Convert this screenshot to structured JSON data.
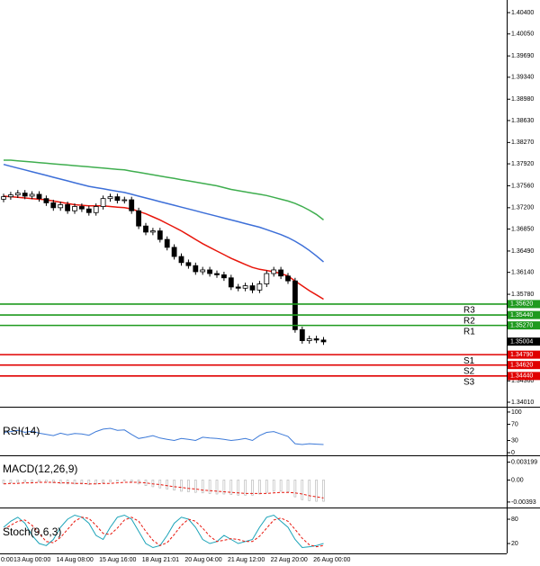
{
  "chart_data": [
    {
      "type": "candlestick",
      "ylim": [
        1.33936,
        1.40607
      ],
      "yticks": [
        {
          "value": 1.404,
          "label": "1.40400"
        },
        {
          "value": 1.4005,
          "label": "1.40050"
        },
        {
          "value": 1.3969,
          "label": "1.39690"
        },
        {
          "value": 1.3934,
          "label": "1.39340"
        },
        {
          "value": 1.3898,
          "label": "1.38980"
        },
        {
          "value": 1.3863,
          "label": "1.38630"
        },
        {
          "value": 1.3827,
          "label": "1.38270"
        },
        {
          "value": 1.3792,
          "label": "1.37920"
        },
        {
          "value": 1.3756,
          "label": "1.37560"
        },
        {
          "value": 1.372,
          "label": "1.37200"
        },
        {
          "value": 1.3685,
          "label": "1.36850"
        },
        {
          "value": 1.3649,
          "label": "1.36490"
        },
        {
          "value": 1.3614,
          "label": "1.36140"
        },
        {
          "value": 1.3578,
          "label": "1.35780"
        },
        {
          "value": 1.3436,
          "label": "1.34360"
        },
        {
          "value": 1.3401,
          "label": "1.34010"
        }
      ],
      "open": [
        1.3734,
        1.3738,
        1.3741,
        1.3744,
        1.3739,
        1.3742,
        1.3735,
        1.3728,
        1.372,
        1.3725,
        1.3715,
        1.3722,
        1.3718,
        1.3712,
        1.3722,
        1.3735,
        1.3738,
        1.3732,
        1.3733,
        1.3715,
        1.369,
        1.368,
        1.3682,
        1.3668,
        1.3655,
        1.364,
        1.363,
        1.3625,
        1.3615,
        1.3618,
        1.3612,
        1.361,
        1.3605,
        1.359,
        1.3588,
        1.3592,
        1.3585,
        1.3595,
        1.3612,
        1.3618,
        1.3608,
        1.36,
        1.352,
        1.3502,
        1.3505,
        1.3503
      ],
      "high": [
        1.3743,
        1.3746,
        1.3749,
        1.3749,
        1.3747,
        1.3747,
        1.374,
        1.3733,
        1.373,
        1.373,
        1.3727,
        1.3727,
        1.3723,
        1.3727,
        1.374,
        1.3743,
        1.3743,
        1.3738,
        1.3738,
        1.372,
        1.3695,
        1.3687,
        1.3687,
        1.3673,
        1.366,
        1.3645,
        1.3635,
        1.363,
        1.3623,
        1.3623,
        1.3617,
        1.3615,
        1.361,
        1.3595,
        1.3597,
        1.3597,
        1.36,
        1.3617,
        1.3623,
        1.3623,
        1.3613,
        1.3605,
        1.3525,
        1.351,
        1.351,
        1.3508
      ],
      "low": [
        1.3729,
        1.3733,
        1.3736,
        1.3734,
        1.3734,
        1.373,
        1.3723,
        1.3715,
        1.3715,
        1.371,
        1.371,
        1.3713,
        1.3707,
        1.3707,
        1.3717,
        1.373,
        1.3727,
        1.3727,
        1.371,
        1.3685,
        1.3675,
        1.3675,
        1.3663,
        1.365,
        1.3635,
        1.3625,
        1.362,
        1.361,
        1.361,
        1.3607,
        1.3605,
        1.36,
        1.3585,
        1.3583,
        1.3583,
        1.358,
        1.358,
        1.359,
        1.3607,
        1.3603,
        1.3595,
        1.3515,
        1.3497,
        1.3497,
        1.3498,
        1.3495
      ],
      "close": [
        1.3738,
        1.3741,
        1.3744,
        1.3739,
        1.3742,
        1.3735,
        1.3728,
        1.372,
        1.3725,
        1.3715,
        1.3722,
        1.3718,
        1.3712,
        1.3722,
        1.3735,
        1.3738,
        1.3732,
        1.3733,
        1.3715,
        1.369,
        1.368,
        1.3682,
        1.3668,
        1.3655,
        1.364,
        1.363,
        1.3625,
        1.3615,
        1.3618,
        1.3612,
        1.361,
        1.3605,
        1.359,
        1.3588,
        1.3592,
        1.3585,
        1.3595,
        1.3612,
        1.3618,
        1.3608,
        1.36,
        1.352,
        1.3502,
        1.3505,
        1.3503,
        1.35
      ],
      "moving_averages": [
        {
          "color": "#e8160c",
          "values": [
            1.3739,
            1.3738,
            1.3737,
            1.3736,
            1.3735,
            1.3734,
            1.3733,
            1.3731,
            1.3729,
            1.3727,
            1.3725,
            1.3724,
            1.3723,
            1.3723,
            1.3723,
            1.3722,
            1.3721,
            1.372,
            1.3718,
            1.3714,
            1.371,
            1.3705,
            1.37,
            1.3694,
            1.3688,
            1.3682,
            1.3675,
            1.3668,
            1.3661,
            1.3655,
            1.3649,
            1.3643,
            1.3637,
            1.3632,
            1.3627,
            1.3622,
            1.3619,
            1.3617,
            1.3615,
            1.3612,
            1.3608,
            1.36,
            1.3592,
            1.3584,
            1.3577,
            1.357
          ]
        },
        {
          "color": "#3d6fd8",
          "values": [
            1.3791,
            1.3788,
            1.3785,
            1.3782,
            1.3779,
            1.3776,
            1.3773,
            1.377,
            1.3767,
            1.3764,
            1.3761,
            1.3758,
            1.3755,
            1.3753,
            1.3751,
            1.3749,
            1.3747,
            1.3745,
            1.3742,
            1.3739,
            1.3736,
            1.3733,
            1.373,
            1.3727,
            1.3724,
            1.3721,
            1.3718,
            1.3715,
            1.3712,
            1.3709,
            1.3706,
            1.3703,
            1.37,
            1.3697,
            1.3694,
            1.3691,
            1.3688,
            1.3684,
            1.368,
            1.3676,
            1.3671,
            1.3665,
            1.3658,
            1.365,
            1.3641,
            1.3631
          ]
        },
        {
          "color": "#3fae4f",
          "values": [
            1.3798,
            1.3798,
            1.3797,
            1.3796,
            1.3795,
            1.3794,
            1.3793,
            1.3792,
            1.3791,
            1.379,
            1.3789,
            1.3788,
            1.3787,
            1.3786,
            1.3785,
            1.3784,
            1.3783,
            1.3782,
            1.378,
            1.3778,
            1.3776,
            1.3774,
            1.3772,
            1.377,
            1.3768,
            1.3766,
            1.3764,
            1.3762,
            1.376,
            1.3758,
            1.3756,
            1.3753,
            1.375,
            1.3748,
            1.3746,
            1.3744,
            1.3742,
            1.374,
            1.3737,
            1.3734,
            1.3731,
            1.3727,
            1.3722,
            1.3716,
            1.3709,
            1.37
          ]
        }
      ],
      "levels": [
        {
          "name": "R3",
          "value": 1.3562,
          "label": "1.35620",
          "color": "#1f9a1f"
        },
        {
          "name": "R2",
          "value": 1.3544,
          "label": "1.35440",
          "color": "#1f9a1f"
        },
        {
          "name": "R1",
          "value": 1.3527,
          "label": "1.35270",
          "color": "#1f9a1f"
        },
        {
          "name": "S1",
          "value": 1.3479,
          "label": "1.34790",
          "color": "#e00000"
        },
        {
          "name": "S2",
          "value": 1.3462,
          "label": "1.34620",
          "color": "#e00000"
        },
        {
          "name": "S3",
          "value": 1.3444,
          "label": "1.34440",
          "color": "#e00000"
        }
      ],
      "current_price": {
        "value": 1.35004,
        "label": "1.35004"
      },
      "x_labels": [
        "0:00",
        "13 Aug 00:00",
        "14 Aug 08:00",
        "15 Aug 16:00",
        "18 Aug 21:01",
        "20 Aug 04:00",
        "21 Aug 12:00",
        "22 Aug 20:00",
        "26 Aug 00:00"
      ]
    },
    {
      "type": "line",
      "title": "RSI(14)",
      "ylim": [
        -6.5,
        110.9
      ],
      "yticks": [
        100,
        70,
        30,
        0
      ],
      "series": [
        {
          "color": "#3d7ad8",
          "dashed": false,
          "values": [
            50,
            52,
            55,
            50,
            53,
            48,
            45,
            42,
            48,
            44,
            47,
            46,
            43,
            52,
            58,
            60,
            55,
            56,
            45,
            35,
            38,
            42,
            36,
            33,
            30,
            35,
            33,
            30,
            38,
            36,
            35,
            33,
            30,
            32,
            35,
            30,
            42,
            50,
            52,
            46,
            40,
            22,
            20,
            22,
            21,
            20
          ]
        }
      ]
    },
    {
      "type": "bar-line",
      "title": "MACD(12,26,9)",
      "ylim": [
        -0.00491,
        0.00426
      ],
      "yticks": [
        0.003199,
        {
          "value": 0,
          "label": "0.00"
        },
        -0.00393
      ],
      "series": [
        {
          "style": "histogram",
          "color": "#b0b0b0",
          "values": [
            -0.0006,
            -0.0005,
            -0.0004,
            -0.0003,
            -0.0003,
            -0.0003,
            -0.0004,
            -0.0005,
            -0.0006,
            -0.0007,
            -0.0007,
            -0.0007,
            -0.0008,
            -0.0007,
            -0.0005,
            -0.0003,
            -0.0002,
            -0.0001,
            -0.0003,
            -0.0007,
            -0.001,
            -0.0012,
            -0.0014,
            -0.0016,
            -0.0018,
            -0.002,
            -0.0021,
            -0.0022,
            -0.0023,
            -0.0024,
            -0.0025,
            -0.0025,
            -0.0026,
            -0.0027,
            -0.0027,
            -0.0027,
            -0.0025,
            -0.0022,
            -0.002,
            -0.002,
            -0.0021,
            -0.003,
            -0.0035,
            -0.0037,
            -0.0038,
            -0.0038
          ]
        },
        {
          "style": "line",
          "color": "#e8160c",
          "dashed": true,
          "values": [
            -0.0007,
            -0.0006,
            -0.0006,
            -0.0005,
            -0.0005,
            -0.0004,
            -0.0004,
            -0.0004,
            -0.0005,
            -0.0005,
            -0.0006,
            -0.0006,
            -0.0007,
            -0.0007,
            -0.0006,
            -0.0006,
            -0.0005,
            -0.0004,
            -0.0004,
            -0.0004,
            -0.0005,
            -0.0007,
            -0.0008,
            -0.001,
            -0.0012,
            -0.0013,
            -0.0015,
            -0.0016,
            -0.0018,
            -0.0019,
            -0.002,
            -0.0021,
            -0.0022,
            -0.0023,
            -0.0024,
            -0.0024,
            -0.0024,
            -0.0024,
            -0.0023,
            -0.0022,
            -0.0022,
            -0.0023,
            -0.0025,
            -0.0028,
            -0.003,
            -0.0032
          ]
        }
      ]
    },
    {
      "type": "line",
      "title": "Stoch(9,6,3)",
      "ylim": [
        -4.4,
        106.7
      ],
      "yticks": [
        80,
        20
      ],
      "series": [
        {
          "color": "#1aa3b8",
          "dashed": false,
          "values": [
            60,
            75,
            85,
            70,
            40,
            20,
            15,
            30,
            60,
            80,
            90,
            85,
            70,
            40,
            30,
            60,
            85,
            90,
            80,
            50,
            20,
            10,
            15,
            40,
            70,
            85,
            80,
            60,
            30,
            20,
            25,
            40,
            30,
            20,
            25,
            30,
            60,
            85,
            90,
            75,
            60,
            30,
            10,
            12,
            15,
            20
          ]
        },
        {
          "color": "#e8160c",
          "dashed": true,
          "values": [
            55,
            65,
            75,
            78,
            65,
            45,
            25,
            22,
            35,
            55,
            75,
            85,
            82,
            65,
            45,
            42,
            58,
            78,
            85,
            75,
            50,
            28,
            15,
            22,
            42,
            65,
            80,
            75,
            58,
            38,
            25,
            28,
            32,
            30,
            25,
            25,
            38,
            58,
            78,
            83,
            75,
            55,
            33,
            17,
            12,
            15
          ]
        }
      ]
    }
  ]
}
